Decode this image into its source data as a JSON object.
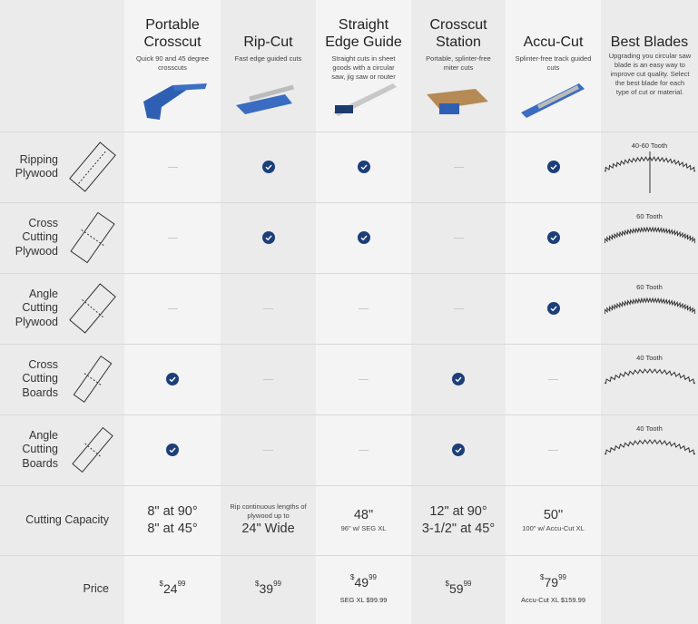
{
  "products": [
    {
      "name": "Portable Crosscut",
      "description": "Quick 90 and 45 degree crosscuts"
    },
    {
      "name": "Rip-Cut",
      "description": "Fast edge guided cuts"
    },
    {
      "name": "Straight Edge Guide",
      "description": "Straight cuts in sheet goods with a circular saw, jig saw or router"
    },
    {
      "name": "Crosscut Station",
      "description": "Portable, splinter-free miter cuts"
    },
    {
      "name": "Accu-Cut",
      "description": "Splinter-free track guided cuts"
    }
  ],
  "blades": {
    "title": "Best Blades",
    "description": "Upgrading you circular saw blade is an easy way to improve cut quality. Select the best blade for each type of cut or material."
  },
  "rows": [
    {
      "label": [
        "Ripping",
        "Plywood"
      ],
      "cells": [
        false,
        true,
        true,
        false,
        true
      ],
      "blade": "40-60 Tooth"
    },
    {
      "label": [
        "Cross",
        "Cutting",
        "Plywood"
      ],
      "cells": [
        false,
        true,
        true,
        false,
        true
      ],
      "blade": "60 Tooth"
    },
    {
      "label": [
        "Angle",
        "Cutting",
        "Plywood"
      ],
      "cells": [
        false,
        false,
        false,
        false,
        true
      ],
      "blade": "60 Tooth"
    },
    {
      "label": [
        "Cross",
        "Cutting",
        "Boards"
      ],
      "cells": [
        true,
        false,
        false,
        true,
        false
      ],
      "blade": "40 Tooth"
    },
    {
      "label": [
        "Angle",
        "Cutting",
        "Boards"
      ],
      "cells": [
        true,
        false,
        false,
        true,
        false
      ],
      "blade": "40 Tooth"
    }
  ],
  "capacity": {
    "label": "Cutting Capacity",
    "cells": [
      [
        {
          "text": "8\" at 90°",
          "style": "large"
        },
        {
          "text": "8\" at 45°",
          "style": "large"
        }
      ],
      [
        {
          "text": "Rip continuous lengths of plywood up to",
          "style": "small"
        },
        {
          "text": "24\" Wide",
          "style": "large"
        }
      ],
      [
        {
          "text": "48\"",
          "style": "large"
        },
        {
          "text": "96\" w/ SEG XL",
          "style": "small"
        }
      ],
      [
        {
          "text": "12\" at 90°",
          "style": "large"
        },
        {
          "text": "3-1/2\" at 45°",
          "style": "large"
        }
      ],
      [
        {
          "text": "50\"",
          "style": "large"
        },
        {
          "text": "100\" w/ Accu-Cut XL",
          "style": "small"
        }
      ]
    ]
  },
  "price": {
    "label": "Price",
    "cells": [
      {
        "currency": "$",
        "amount": "24",
        "cents": "99"
      },
      {
        "currency": "$",
        "amount": "39",
        "cents": "99"
      },
      {
        "currency": "$",
        "amount": "49",
        "cents": "99",
        "note": "SEG XL $99.99"
      },
      {
        "currency": "$",
        "amount": "59",
        "cents": "99"
      },
      {
        "currency": "$",
        "amount": "79",
        "cents": "99",
        "note": "Accu-Cut XL $159.99"
      }
    ]
  }
}
